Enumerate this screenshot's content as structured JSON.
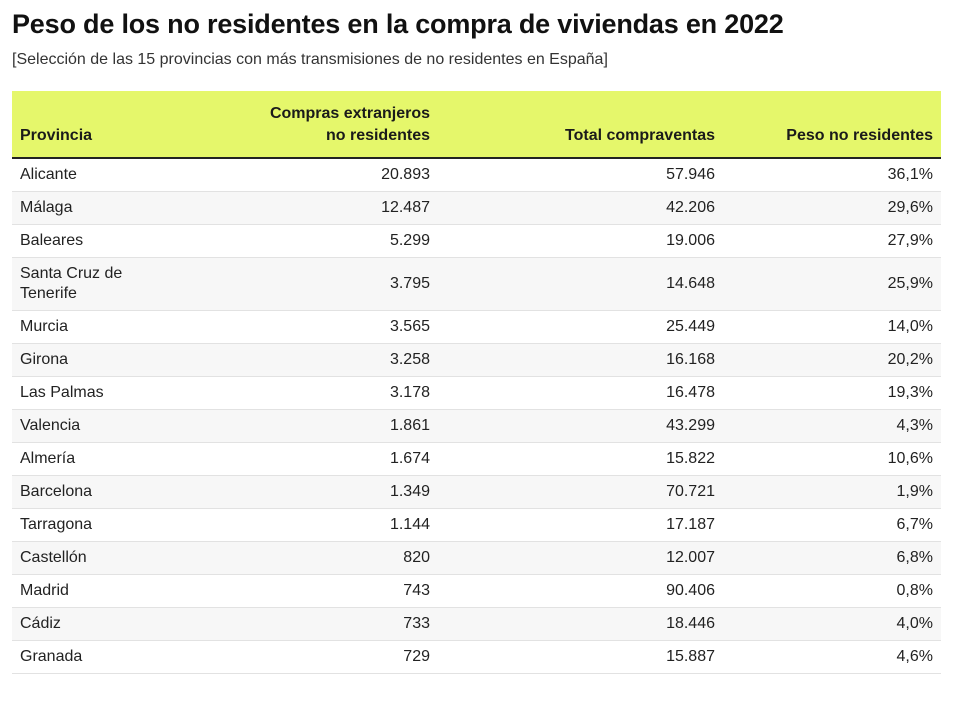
{
  "title": "Peso de los no residentes en la compra de viviendas en 2022",
  "subtitle": "[Selección de las 15 provincias con más transmisiones de no residentes en España]",
  "table": {
    "headers": {
      "provincia": "Provincia",
      "compras_line1": "Compras extranjeros",
      "compras_line2": "no residentes",
      "total": "Total compraventas",
      "peso": "Peso no residentes"
    },
    "rows": [
      {
        "provincia": "Alicante",
        "compras": "20.893",
        "total": "57.946",
        "peso": "36,1%"
      },
      {
        "provincia": "Málaga",
        "compras": "12.487",
        "total": "42.206",
        "peso": "29,6%"
      },
      {
        "provincia": "Baleares",
        "compras": "5.299",
        "total": "19.006",
        "peso": "27,9%"
      },
      {
        "provincia_line1": "Santa Cruz de",
        "provincia_line2": "Tenerife",
        "compras": "3.795",
        "total": "14.648",
        "peso": "25,9%"
      },
      {
        "provincia": "Murcia",
        "compras": "3.565",
        "total": "25.449",
        "peso": "14,0%"
      },
      {
        "provincia": "Girona",
        "compras": "3.258",
        "total": "16.168",
        "peso": "20,2%"
      },
      {
        "provincia": "Las Palmas",
        "compras": "3.178",
        "total": "16.478",
        "peso": "19,3%"
      },
      {
        "provincia": "Valencia",
        "compras": "1.861",
        "total": "43.299",
        "peso": "4,3%"
      },
      {
        "provincia": "Almería",
        "compras": "1.674",
        "total": "15.822",
        "peso": "10,6%"
      },
      {
        "provincia": "Barcelona",
        "compras": "1.349",
        "total": "70.721",
        "peso": "1,9%"
      },
      {
        "provincia": "Tarragona",
        "compras": "1.144",
        "total": "17.187",
        "peso": "6,7%"
      },
      {
        "provincia": "Castellón",
        "compras": "820",
        "total": "12.007",
        "peso": "6,8%"
      },
      {
        "provincia": "Madrid",
        "compras": "743",
        "total": "90.406",
        "peso": "0,8%"
      },
      {
        "provincia": "Cádiz",
        "compras": "733",
        "total": "18.446",
        "peso": "4,0%"
      },
      {
        "provincia": "Granada",
        "compras": "729",
        "total": "15.887",
        "peso": "4,6%"
      }
    ]
  },
  "colors": {
    "header_background": "#e5f76b",
    "row_alternate": "#f7f7f7"
  }
}
